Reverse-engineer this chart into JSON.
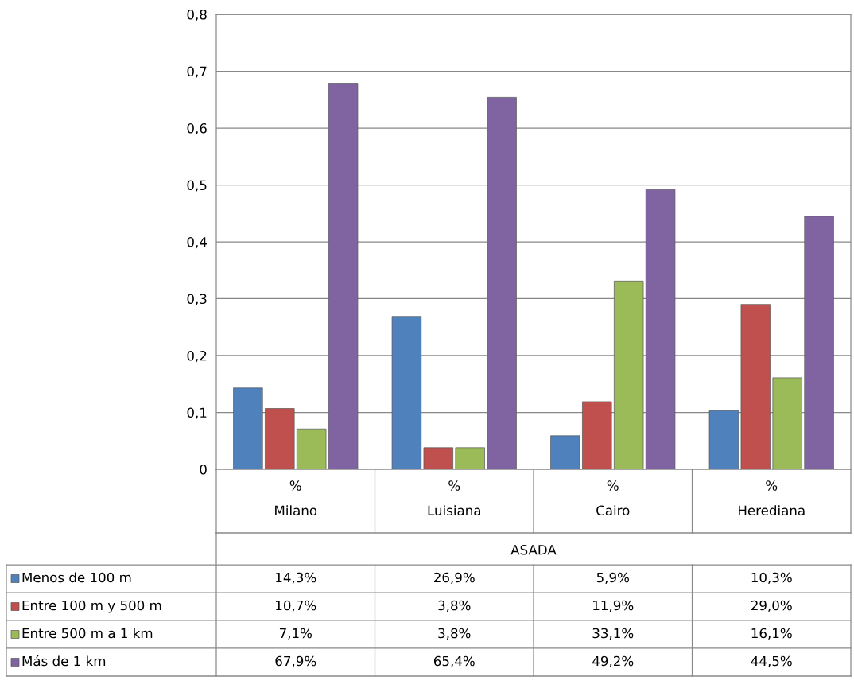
{
  "chart_data": {
    "type": "bar",
    "categories": [
      "%\nMilano",
      "%\nLuisiana",
      "%\nCairo",
      "%\nHerediana"
    ],
    "xlabel": "ASADA",
    "series": [
      {
        "name": "Menos de 100 m",
        "color": "#4f81bd",
        "values": [
          0.143,
          0.269,
          0.059,
          0.103
        ],
        "value_labels": [
          "14,3%",
          "26,9%",
          "5,9%",
          "10,3%"
        ]
      },
      {
        "name": "Entre 100 m y 500 m",
        "color": "#c0504d",
        "values": [
          0.107,
          0.038,
          0.119,
          0.29
        ],
        "value_labels": [
          "10,7%",
          "3,8%",
          "11,9%",
          "29,0%"
        ]
      },
      {
        "name": "Entre 500 m a 1 km",
        "color": "#9bbb59",
        "values": [
          0.071,
          0.038,
          0.331,
          0.161
        ],
        "value_labels": [
          "7,1%",
          "3,8%",
          "33,1%",
          "16,1%"
        ]
      },
      {
        "name": "Más de 1 km",
        "color": "#8064a2",
        "values": [
          0.679,
          0.654,
          0.492,
          0.445
        ],
        "value_labels": [
          "67,9%",
          "65,4%",
          "49,2%",
          "44,5%"
        ]
      }
    ],
    "ylim": [
      0,
      0.8
    ],
    "yticks": [
      0,
      {
        "value": 0.1,
        "label": "0,1"
      },
      {
        "value": 0.2,
        "label": "0,2"
      },
      {
        "value": 0.3,
        "label": "0,3"
      },
      {
        "value": 0.4,
        "label": "0,4"
      },
      {
        "value": 0.5,
        "label": "0,5"
      },
      {
        "value": 0.6,
        "label": "0,6"
      },
      {
        "value": 0.7,
        "label": "0,7"
      },
      {
        "value": 0.8,
        "label": "0,8"
      }
    ],
    "grid": "y",
    "legend": "bottom left"
  }
}
